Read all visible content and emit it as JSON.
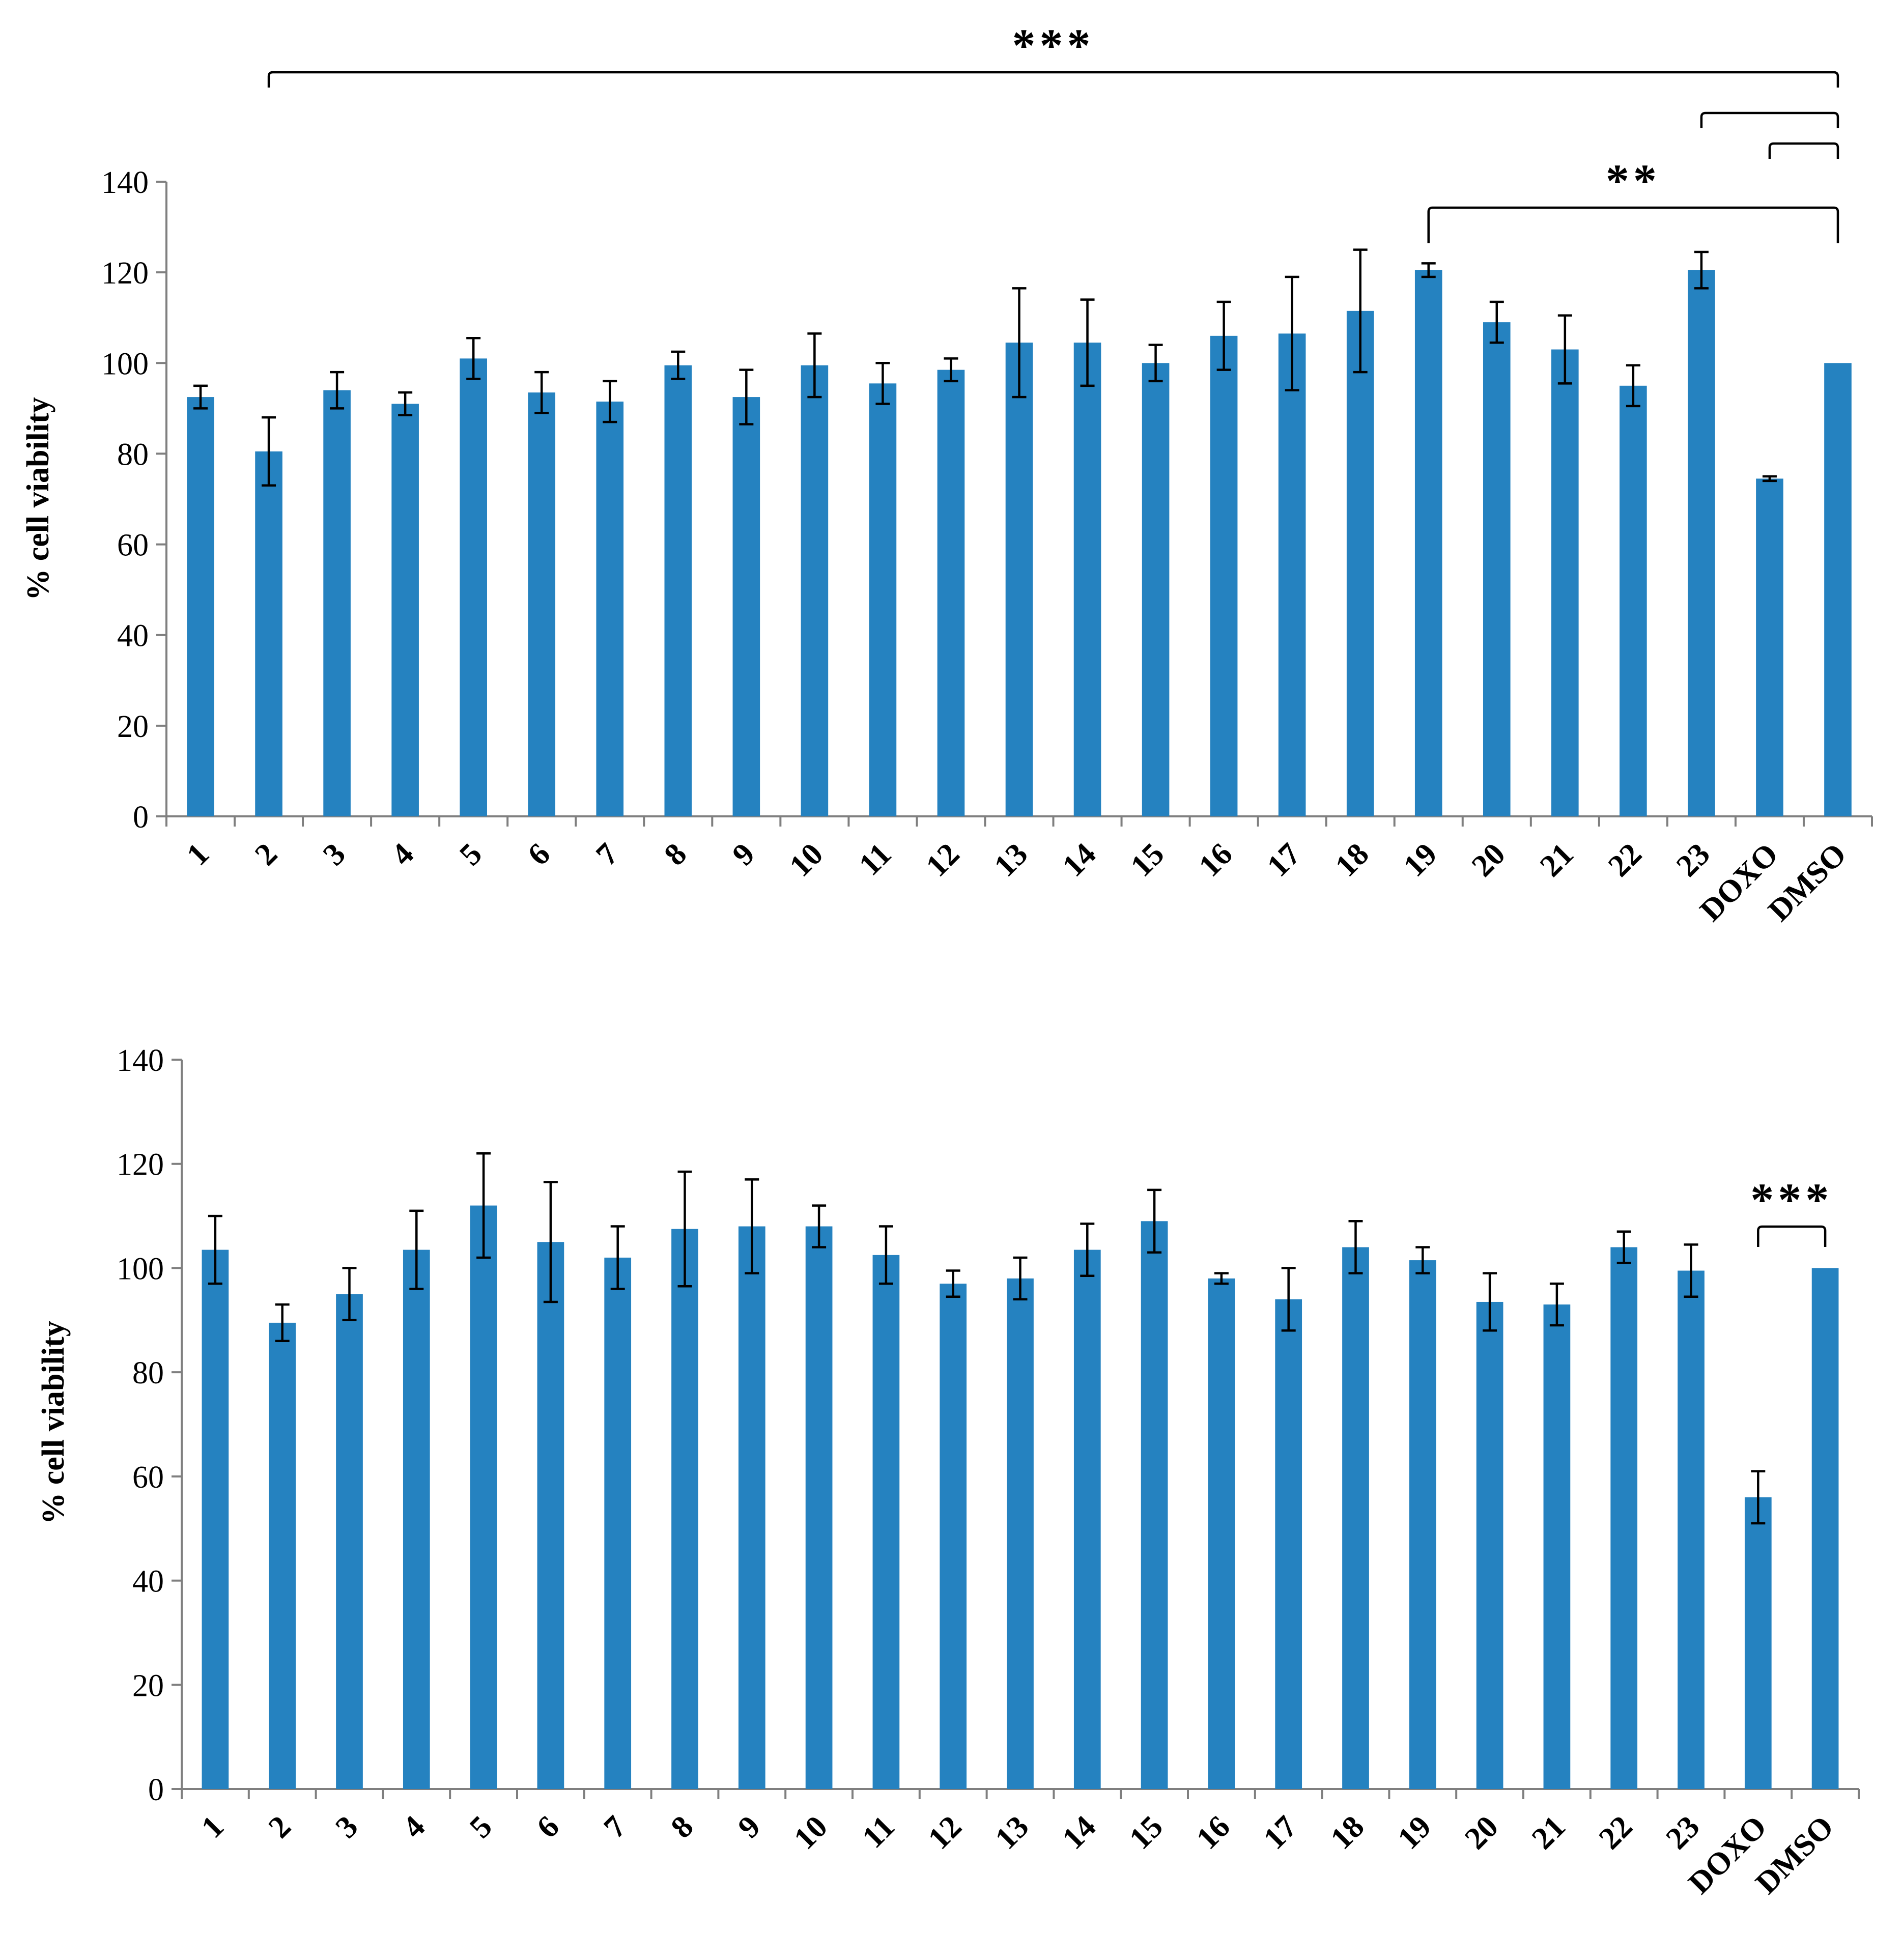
{
  "chart_data": [
    {
      "type": "bar",
      "title": "",
      "xlabel": "",
      "ylabel": "% cell viability",
      "ylim": [
        0,
        140
      ],
      "yticks": [
        0,
        20,
        40,
        60,
        80,
        100,
        120,
        140
      ],
      "grid": false,
      "bar_color": "#2582c0",
      "categories": [
        "1",
        "2",
        "3",
        "4",
        "5",
        "6",
        "7",
        "8",
        "9",
        "10",
        "11",
        "12",
        "13",
        "14",
        "15",
        "16",
        "17",
        "18",
        "19",
        "20",
        "21",
        "22",
        "23",
        "DOXO",
        "DMSO"
      ],
      "series": [
        {
          "name": "% cell viability",
          "values": [
            92.5,
            80.5,
            94,
            91,
            101,
            93.5,
            91.5,
            99.5,
            92.5,
            99.5,
            95.5,
            98.5,
            104.5,
            104.5,
            100,
            106,
            106.5,
            111.5,
            120.5,
            109,
            103,
            95,
            120.5,
            74.5,
            100
          ],
          "errors": [
            2.5,
            7.5,
            4,
            2.5,
            4.5,
            4.5,
            4.5,
            3,
            6,
            7,
            4.5,
            2.5,
            12,
            9.5,
            4,
            7.5,
            12.5,
            13.5,
            1.5,
            4.5,
            7.5,
            4.5,
            4,
            0.5,
            0
          ]
        }
      ],
      "significance": [
        {
          "label": "***",
          "from": "2",
          "to": "DMSO",
          "level": 0
        },
        {
          "label": "",
          "from": "23",
          "to": "DMSO",
          "level": 1
        },
        {
          "label": "",
          "from": "DOXO",
          "to": "DMSO",
          "level": 2
        },
        {
          "label": "**",
          "from": "19",
          "to": "DMSO",
          "level": 3
        }
      ]
    },
    {
      "type": "bar",
      "title": "",
      "xlabel": "",
      "ylabel": "% cell viability",
      "ylim": [
        0,
        140
      ],
      "yticks": [
        0,
        20,
        40,
        60,
        80,
        100,
        120,
        140
      ],
      "grid": false,
      "bar_color": "#2582c0",
      "categories": [
        "1",
        "2",
        "3",
        "4",
        "5",
        "6",
        "7",
        "8",
        "9",
        "10",
        "11",
        "12",
        "13",
        "14",
        "15",
        "16",
        "17",
        "18",
        "19",
        "20",
        "21",
        "22",
        "23",
        "DOXO",
        "DMSO"
      ],
      "series": [
        {
          "name": "% cell viability",
          "values": [
            103.5,
            89.5,
            95,
            103.5,
            112,
            105,
            102,
            107.5,
            108,
            108,
            102.5,
            97,
            98,
            103.5,
            109,
            98,
            94,
            104,
            101.5,
            93.5,
            93,
            104,
            99.5,
            56,
            100
          ],
          "errors": [
            6.5,
            3.5,
            5,
            7.5,
            10,
            11.5,
            6,
            11,
            9,
            4,
            5.5,
            2.5,
            4,
            5,
            6,
            1,
            6,
            5,
            2.5,
            5.5,
            4,
            3,
            5,
            5,
            0
          ]
        }
      ],
      "significance": [
        {
          "label": "***",
          "from": "DOXO",
          "to": "DMSO",
          "level": 0
        }
      ]
    }
  ]
}
